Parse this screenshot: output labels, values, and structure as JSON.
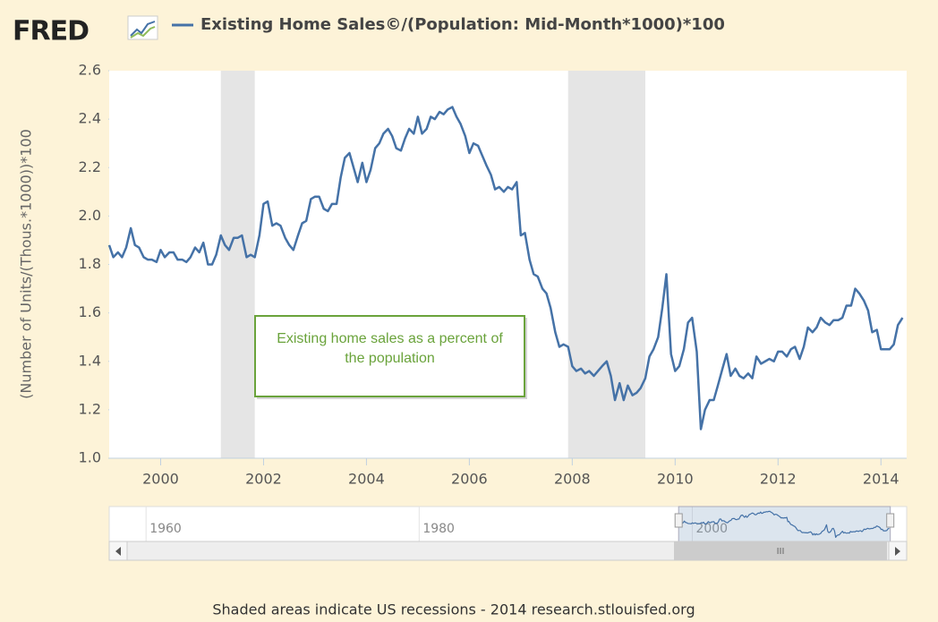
{
  "chart_data": {
    "type": "line",
    "logo": "FRED",
    "title": "Existing Home Sales©/(Population: Mid-Month*1000)*100",
    "y_label": "(Number of Units/(Thous.*1000))*100",
    "annotation": "Existing home sales as a percent of the population",
    "footer": "Shaded areas indicate US recessions - 2014 research.stlouisfed.org",
    "xlim": [
      1999,
      2014.5
    ],
    "xticks": [
      2000,
      2002,
      2004,
      2006,
      2008,
      2010,
      2012,
      2014
    ],
    "ylim": [
      1.0,
      2.6
    ],
    "yticks": [
      {
        "value": 1.0,
        "label": "1.0"
      },
      1.2,
      1.4,
      1.6,
      1.8,
      {
        "value": 2.0,
        "label": "2.0"
      },
      2.2,
      2.4,
      2.6
    ],
    "grid": false,
    "recessions": [
      [
        2001.17,
        2001.83
      ],
      [
        2007.92,
        2009.42
      ]
    ],
    "navigator": {
      "xlim": [
        1957.3,
        2015.7
      ],
      "xticks": [
        1960,
        1980,
        2000
      ]
    },
    "x": [
      1999.0,
      1999.08,
      1999.17,
      1999.25,
      1999.33,
      1999.42,
      1999.5,
      1999.58,
      1999.67,
      1999.75,
      1999.83,
      1999.92,
      2000.0,
      2000.08,
      2000.17,
      2000.25,
      2000.33,
      2000.42,
      2000.5,
      2000.58,
      2000.67,
      2000.75,
      2000.83,
      2000.92,
      2001.0,
      2001.08,
      2001.17,
      2001.25,
      2001.33,
      2001.42,
      2001.5,
      2001.58,
      2001.67,
      2001.75,
      2001.83,
      2001.92,
      2002.0,
      2002.08,
      2002.17,
      2002.25,
      2002.33,
      2002.42,
      2002.5,
      2002.58,
      2002.67,
      2002.75,
      2002.83,
      2002.92,
      2003.0,
      2003.08,
      2003.17,
      2003.25,
      2003.33,
      2003.42,
      2003.5,
      2003.58,
      2003.67,
      2003.75,
      2003.83,
      2003.92,
      2004.0,
      2004.08,
      2004.17,
      2004.25,
      2004.33,
      2004.42,
      2004.5,
      2004.58,
      2004.67,
      2004.75,
      2004.83,
      2004.92,
      2005.0,
      2005.08,
      2005.17,
      2005.25,
      2005.33,
      2005.42,
      2005.5,
      2005.58,
      2005.67,
      2005.75,
      2005.83,
      2005.92,
      2006.0,
      2006.08,
      2006.17,
      2006.25,
      2006.33,
      2006.42,
      2006.5,
      2006.58,
      2006.67,
      2006.75,
      2006.83,
      2006.92,
      2007.0,
      2007.08,
      2007.17,
      2007.25,
      2007.33,
      2007.42,
      2007.5,
      2007.58,
      2007.67,
      2007.75,
      2007.83,
      2007.92,
      2008.0,
      2008.08,
      2008.17,
      2008.25,
      2008.33,
      2008.42,
      2008.5,
      2008.58,
      2008.67,
      2008.75,
      2008.83,
      2008.92,
      2009.0,
      2009.08,
      2009.17,
      2009.25,
      2009.33,
      2009.42,
      2009.5,
      2009.58,
      2009.67,
      2009.75,
      2009.83,
      2009.92,
      2010.0,
      2010.08,
      2010.17,
      2010.25,
      2010.33,
      2010.42,
      2010.5,
      2010.58,
      2010.67,
      2010.75,
      2010.83,
      2010.92,
      2011.0,
      2011.08,
      2011.17,
      2011.25,
      2011.33,
      2011.42,
      2011.5,
      2011.58,
      2011.67,
      2011.75,
      2011.83,
      2011.92,
      2012.0,
      2012.08,
      2012.17,
      2012.25,
      2012.33,
      2012.42,
      2012.5,
      2012.58,
      2012.67,
      2012.75,
      2012.83,
      2012.92,
      2013.0,
      2013.08,
      2013.17,
      2013.25,
      2013.33,
      2013.42,
      2013.5,
      2013.58,
      2013.67,
      2013.75,
      2013.83,
      2013.92,
      2014.0,
      2014.08,
      2014.17,
      2014.25,
      2014.33,
      2014.42
    ],
    "series": [
      {
        "name": "Existing Home Sales©/(Population: Mid-Month*1000)*100",
        "color": "#4572a7",
        "values": [
          1.88,
          1.83,
          1.85,
          1.83,
          1.87,
          1.95,
          1.88,
          1.87,
          1.83,
          1.82,
          1.82,
          1.81,
          1.86,
          1.83,
          1.85,
          1.85,
          1.82,
          1.82,
          1.81,
          1.83,
          1.87,
          1.85,
          1.89,
          1.8,
          1.8,
          1.84,
          1.92,
          1.88,
          1.86,
          1.91,
          1.91,
          1.92,
          1.83,
          1.84,
          1.83,
          1.92,
          2.05,
          2.06,
          1.96,
          1.97,
          1.96,
          1.91,
          1.88,
          1.86,
          1.92,
          1.97,
          1.98,
          2.07,
          2.08,
          2.08,
          2.03,
          2.02,
          2.05,
          2.05,
          2.16,
          2.24,
          2.26,
          2.2,
          2.14,
          2.22,
          2.14,
          2.19,
          2.28,
          2.3,
          2.34,
          2.36,
          2.33,
          2.28,
          2.27,
          2.32,
          2.36,
          2.34,
          2.41,
          2.34,
          2.36,
          2.41,
          2.4,
          2.43,
          2.42,
          2.44,
          2.45,
          2.41,
          2.38,
          2.33,
          2.26,
          2.3,
          2.29,
          2.25,
          2.21,
          2.17,
          2.11,
          2.12,
          2.1,
          2.12,
          2.11,
          2.14,
          1.92,
          1.93,
          1.82,
          1.76,
          1.75,
          1.7,
          1.68,
          1.62,
          1.52,
          1.46,
          1.47,
          1.46,
          1.38,
          1.36,
          1.37,
          1.35,
          1.36,
          1.34,
          1.36,
          1.38,
          1.4,
          1.34,
          1.24,
          1.31,
          1.24,
          1.3,
          1.26,
          1.27,
          1.29,
          1.33,
          1.42,
          1.45,
          1.5,
          1.62,
          1.76,
          1.43,
          1.36,
          1.38,
          1.45,
          1.56,
          1.58,
          1.44,
          1.12,
          1.2,
          1.24,
          1.24,
          1.3,
          1.37,
          1.43,
          1.34,
          1.37,
          1.34,
          1.33,
          1.35,
          1.33,
          1.42,
          1.39,
          1.4,
          1.41,
          1.4,
          1.44,
          1.44,
          1.42,
          1.45,
          1.46,
          1.41,
          1.46,
          1.54,
          1.52,
          1.54,
          1.58,
          1.56,
          1.55,
          1.57,
          1.57,
          1.58,
          1.63,
          1.63,
          1.7,
          1.68,
          1.65,
          1.61,
          1.52,
          1.53,
          1.45,
          1.45,
          1.45,
          1.47,
          1.55,
          1.58
        ]
      }
    ]
  }
}
